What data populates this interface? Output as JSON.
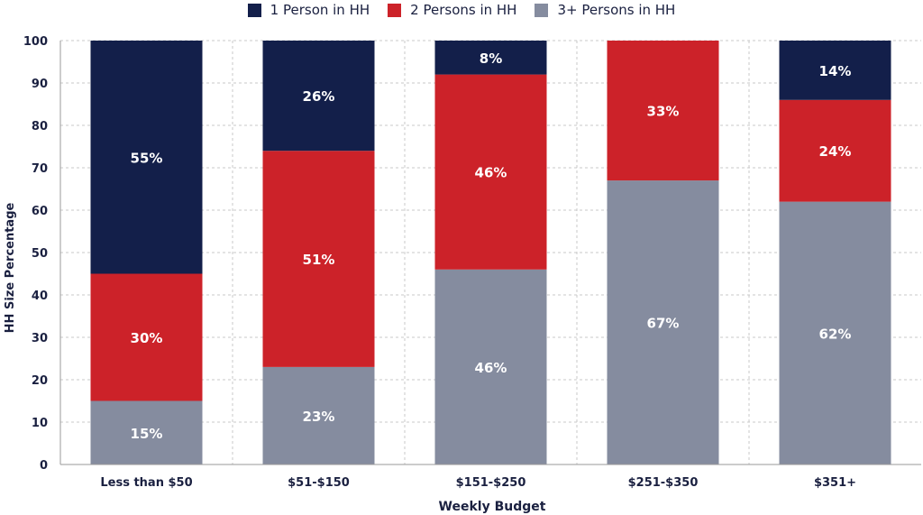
{
  "chart_data": {
    "type": "bar",
    "stacked": true,
    "categories": [
      "Less than $50",
      "$51-$150",
      "$151-$250",
      "$251-$350",
      "$351+"
    ],
    "series": [
      {
        "name": "3+ Persons in HH",
        "color": "#858c9f",
        "values": [
          15,
          23,
          46,
          67,
          62
        ],
        "labels": [
          "15%",
          "23%",
          "46%",
          "67%",
          "62%"
        ]
      },
      {
        "name": "2 Persons in HH",
        "color": "#cc2229",
        "values": [
          30,
          51,
          46,
          33,
          24
        ],
        "labels": [
          "30%",
          "51%",
          "46%",
          "33%",
          "24%"
        ]
      },
      {
        "name": "1 Person in HH",
        "color": "#131f4a",
        "values": [
          55,
          26,
          8,
          0,
          14
        ],
        "labels": [
          "55%",
          "26%",
          "8%",
          "",
          "14%"
        ]
      }
    ],
    "legend_order": [
      "1 Person in HH",
      "2 Persons in HH",
      "3+ Persons in HH"
    ],
    "legend_position": "top-center",
    "xlabel": "Weekly Budget",
    "ylabel": "HH Size Percentage",
    "ylim": [
      0,
      100
    ],
    "yticks": [
      0,
      10,
      20,
      30,
      40,
      50,
      60,
      70,
      80,
      90,
      100
    ],
    "grid": true
  }
}
